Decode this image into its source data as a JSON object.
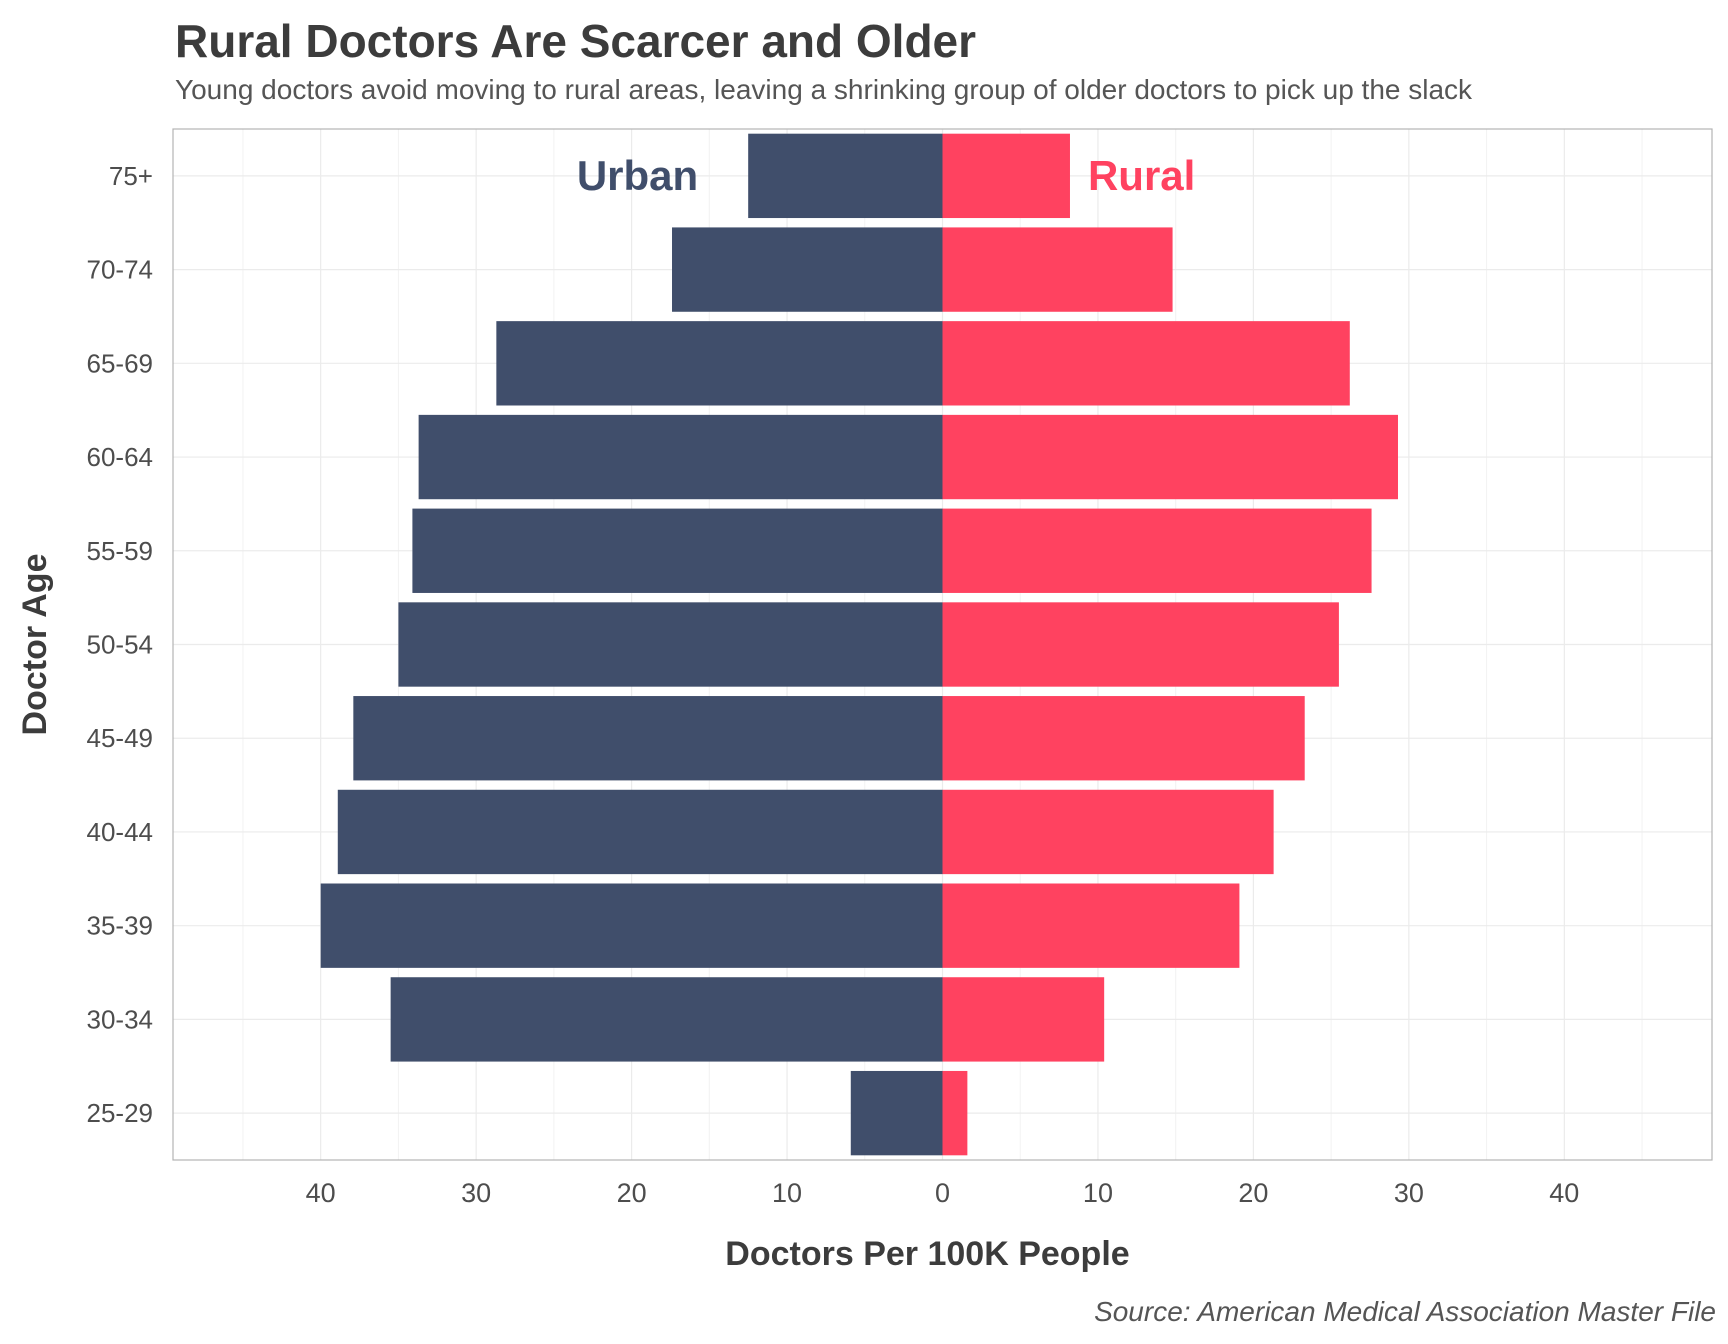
{
  "chart_data": {
    "type": "bar",
    "orientation": "horizontal-diverging",
    "title": "Rural Doctors Are Scarcer and Older",
    "subtitle": "Young doctors avoid moving to rural areas, leaving a shrinking group of older doctors to pick up the slack",
    "xlabel": "Doctors Per 100K People",
    "ylabel": "Doctor Age",
    "source": "Source: American Medical Association Master File",
    "categories": [
      "75+",
      "70-74",
      "65-69",
      "60-64",
      "55-59",
      "50-54",
      "45-49",
      "40-44",
      "35-39",
      "30-34",
      "25-29"
    ],
    "series": [
      {
        "name": "Urban",
        "side": "left",
        "color": "#404e6b",
        "values": [
          12.5,
          17.4,
          28.7,
          33.7,
          34.1,
          35.0,
          37.9,
          38.9,
          40.0,
          35.5,
          5.9
        ]
      },
      {
        "name": "Rural",
        "side": "right",
        "color": "#ff4260",
        "values": [
          8.2,
          14.8,
          26.2,
          29.3,
          27.6,
          25.5,
          23.3,
          21.3,
          19.1,
          10.4,
          1.6
        ]
      }
    ],
    "xlim": [
      -49.5,
      49.5
    ],
    "xticks": [
      -40,
      -30,
      -20,
      -10,
      0,
      10,
      20,
      30,
      40
    ],
    "xtick_labels": [
      "40",
      "30",
      "20",
      "10",
      "0",
      "10",
      "20",
      "30",
      "40"
    ],
    "grid": true,
    "legend": "inline labels at top"
  }
}
